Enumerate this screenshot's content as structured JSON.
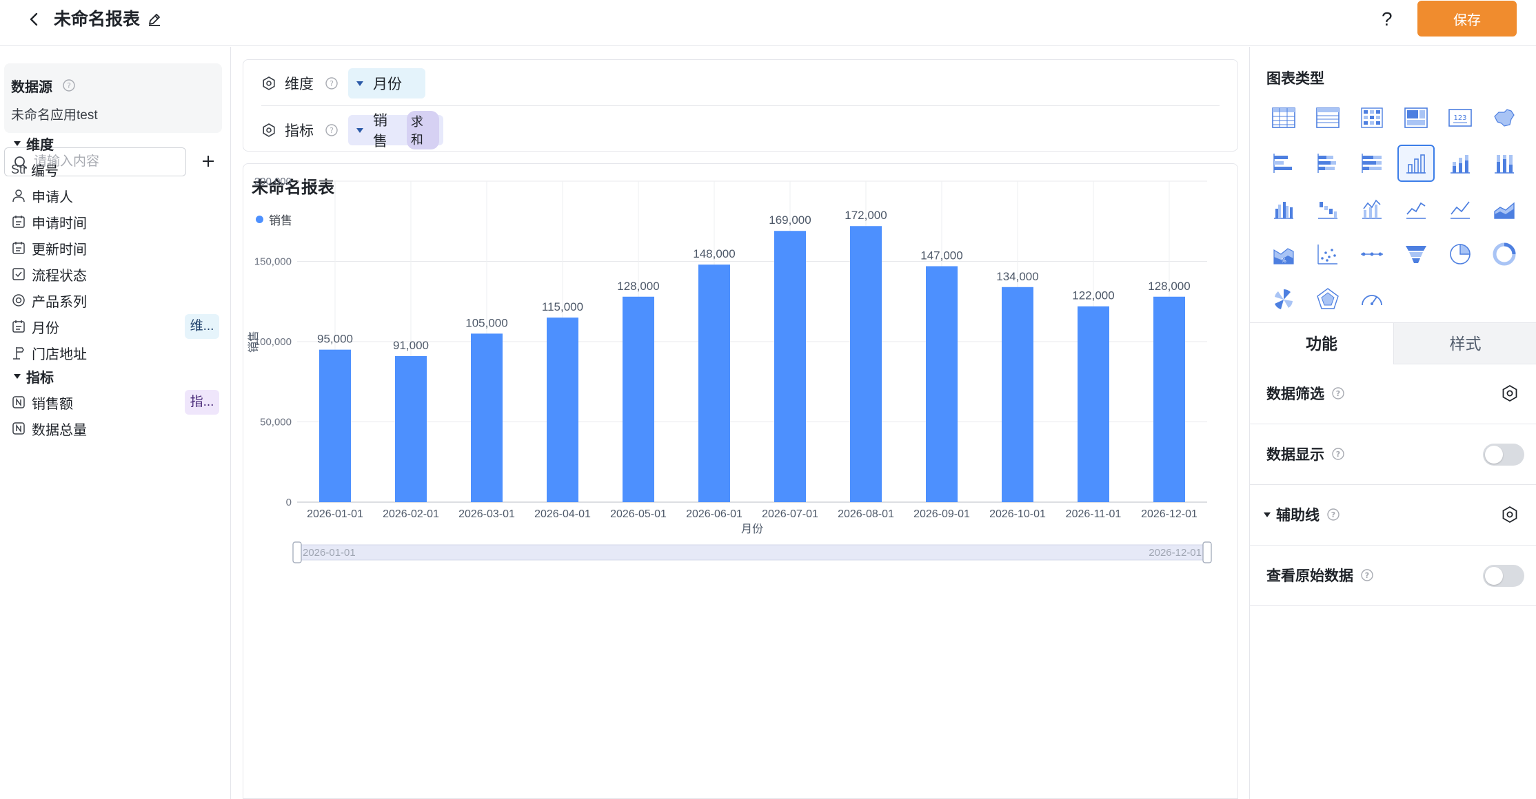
{
  "header": {
    "title": "未命名报表",
    "help_label": "?",
    "save_label": "保存"
  },
  "left": {
    "datasource_title": "数据源",
    "datasource_name": "未命名应用test",
    "search_placeholder": "请输入内容",
    "dimension_section": "维度",
    "dimension_items": [
      {
        "icon_text": "Str",
        "label": "编号",
        "icon": "str-icon"
      },
      {
        "label": "申请人",
        "icon": "user-icon"
      },
      {
        "label": "申请时间",
        "icon": "calendar-icon"
      },
      {
        "label": "更新时间",
        "icon": "calendar-icon"
      },
      {
        "label": "流程状态",
        "icon": "checkbox-icon"
      },
      {
        "label": "产品系列",
        "icon": "radio-icon"
      },
      {
        "label": "月份",
        "icon": "calendar-icon",
        "badge": "维..."
      },
      {
        "label": "门店地址",
        "icon": "location-icon"
      }
    ],
    "metric_section": "指标",
    "metric_items": [
      {
        "label": "销售额",
        "icon": "number-icon",
        "badge": "指..."
      },
      {
        "label": "数据总量",
        "icon": "number-icon"
      }
    ]
  },
  "config": {
    "dimension_label": "维度",
    "dimension_value": "月份",
    "metric_label": "指标",
    "metric_value": "销售",
    "metric_agg": "求和"
  },
  "chart_data": {
    "type": "bar",
    "title": "未命名报表",
    "xlabel": "月份",
    "ylabel": "销售",
    "legend": "top-left",
    "grid": true,
    "ylim": [
      0,
      200000
    ],
    "yticks": [
      "0",
      "50,000",
      "100,000",
      "150,000",
      "200,000"
    ],
    "categories": [
      "2026-01-01",
      "2026-02-01",
      "2026-03-01",
      "2026-04-01",
      "2026-05-01",
      "2026-06-01",
      "2026-07-01",
      "2026-08-01",
      "2026-09-01",
      "2026-10-01",
      "2026-11-01",
      "2026-12-01"
    ],
    "series": [
      {
        "name": "销售",
        "color": "#4d90fe",
        "values": [
          95000,
          91000,
          105000,
          115000,
          128000,
          148000,
          169000,
          172000,
          147000,
          134000,
          122000,
          128000
        ],
        "value_labels": [
          "95,000",
          "91,000",
          "105,000",
          "115,000",
          "128,000",
          "148,000",
          "169,000",
          "172,000",
          "147,000",
          "134,000",
          "122,000",
          "128,000"
        ]
      }
    ],
    "zoom_range": [
      "2026-01-01",
      "2026-12-01"
    ]
  },
  "right": {
    "chart_types_title": "图表类型",
    "selected_type": "bar-chart",
    "tab_function": "功能",
    "tab_style": "样式",
    "options": [
      {
        "label": "数据筛选",
        "control": "gear"
      },
      {
        "label": "数据显示",
        "control": "toggle",
        "enabled": false
      },
      {
        "label": "辅助线",
        "control": "gear",
        "collapsible": true
      },
      {
        "label": "查看原始数据",
        "control": "toggle",
        "enabled": false
      }
    ]
  }
}
